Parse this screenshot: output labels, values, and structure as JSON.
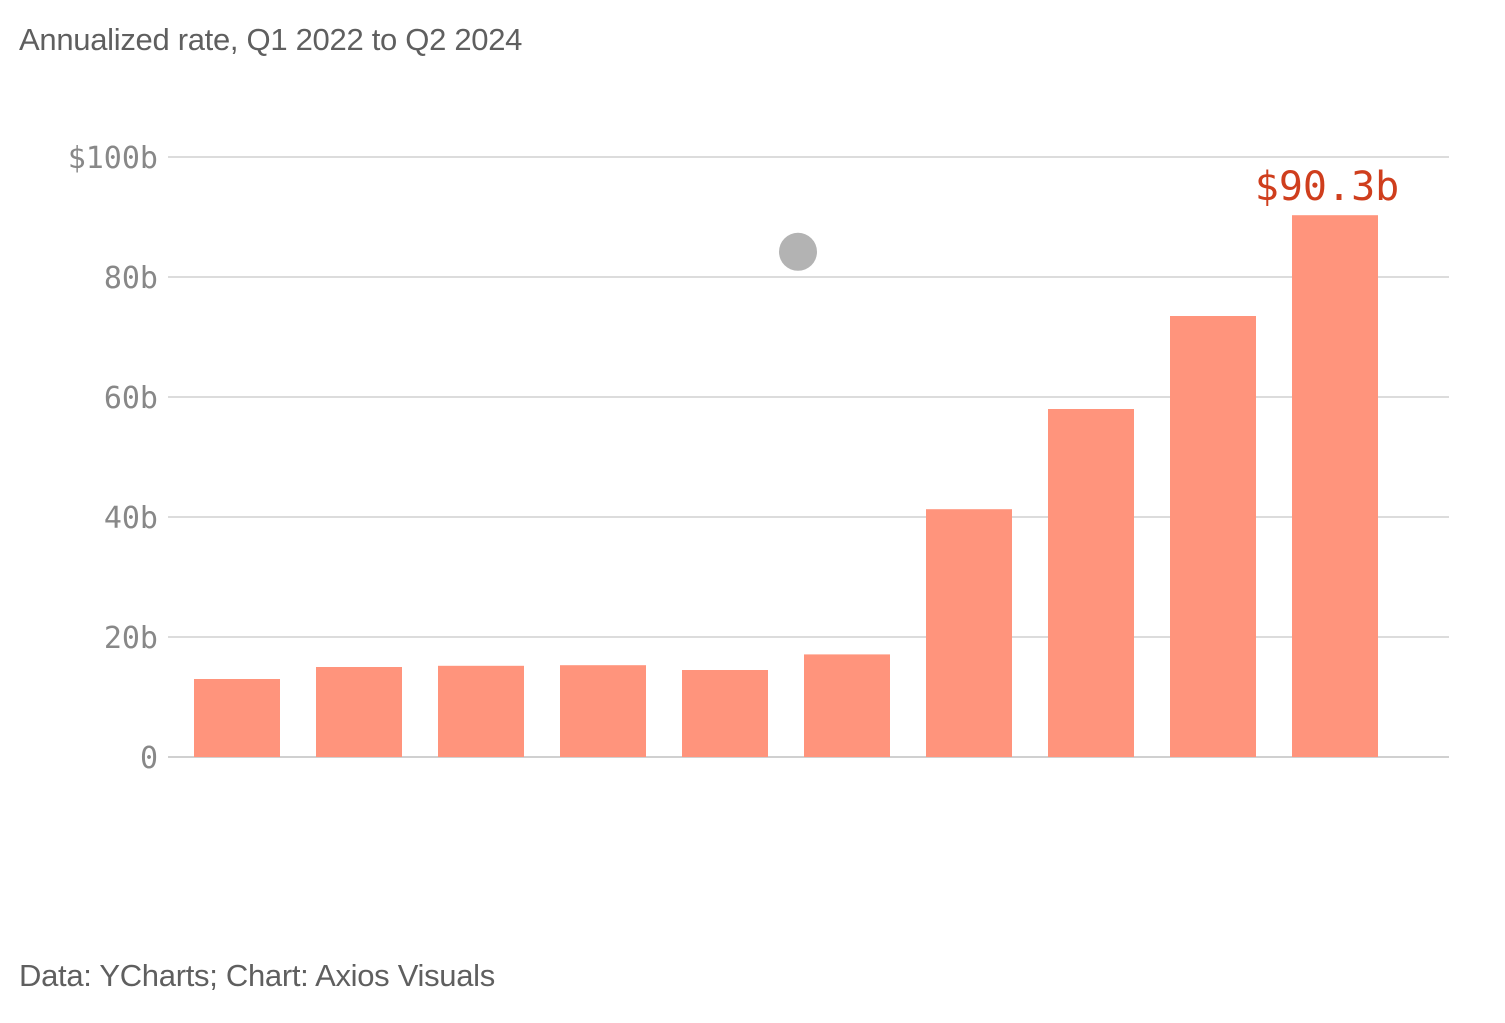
{
  "subtitle": "Annualized rate, Q1 2022 to Q2 2024",
  "source": "Data: YCharts; Chart: Axios Visuals",
  "colors": {
    "bar": "#ff947c",
    "highlight_label": "#cf3e1d",
    "grid": "#d0d0d0",
    "axis_text": "#888888",
    "marker": "#b3b3b3"
  },
  "chart_data": {
    "type": "bar",
    "title": "",
    "subtitle": "Annualized rate, Q1 2022 to Q2 2024",
    "xlabel": "",
    "ylabel": "",
    "values": [
      13.0,
      15.0,
      15.2,
      15.3,
      14.5,
      17.1,
      41.3,
      58.0,
      73.5,
      90.3
    ],
    "ylim": [
      0,
      100
    ],
    "yticks": [
      0,
      20,
      40,
      60,
      80,
      100
    ],
    "ytick_labels": [
      "0",
      "20b",
      "40b",
      "60b",
      "80b",
      "$100b"
    ],
    "grid": true,
    "annotations": [
      {
        "bar_index": 9,
        "text": "$90.3b"
      }
    ],
    "marker": {
      "shape": "circle",
      "between_bars": [
        4,
        5
      ],
      "y": 84.2
    }
  }
}
